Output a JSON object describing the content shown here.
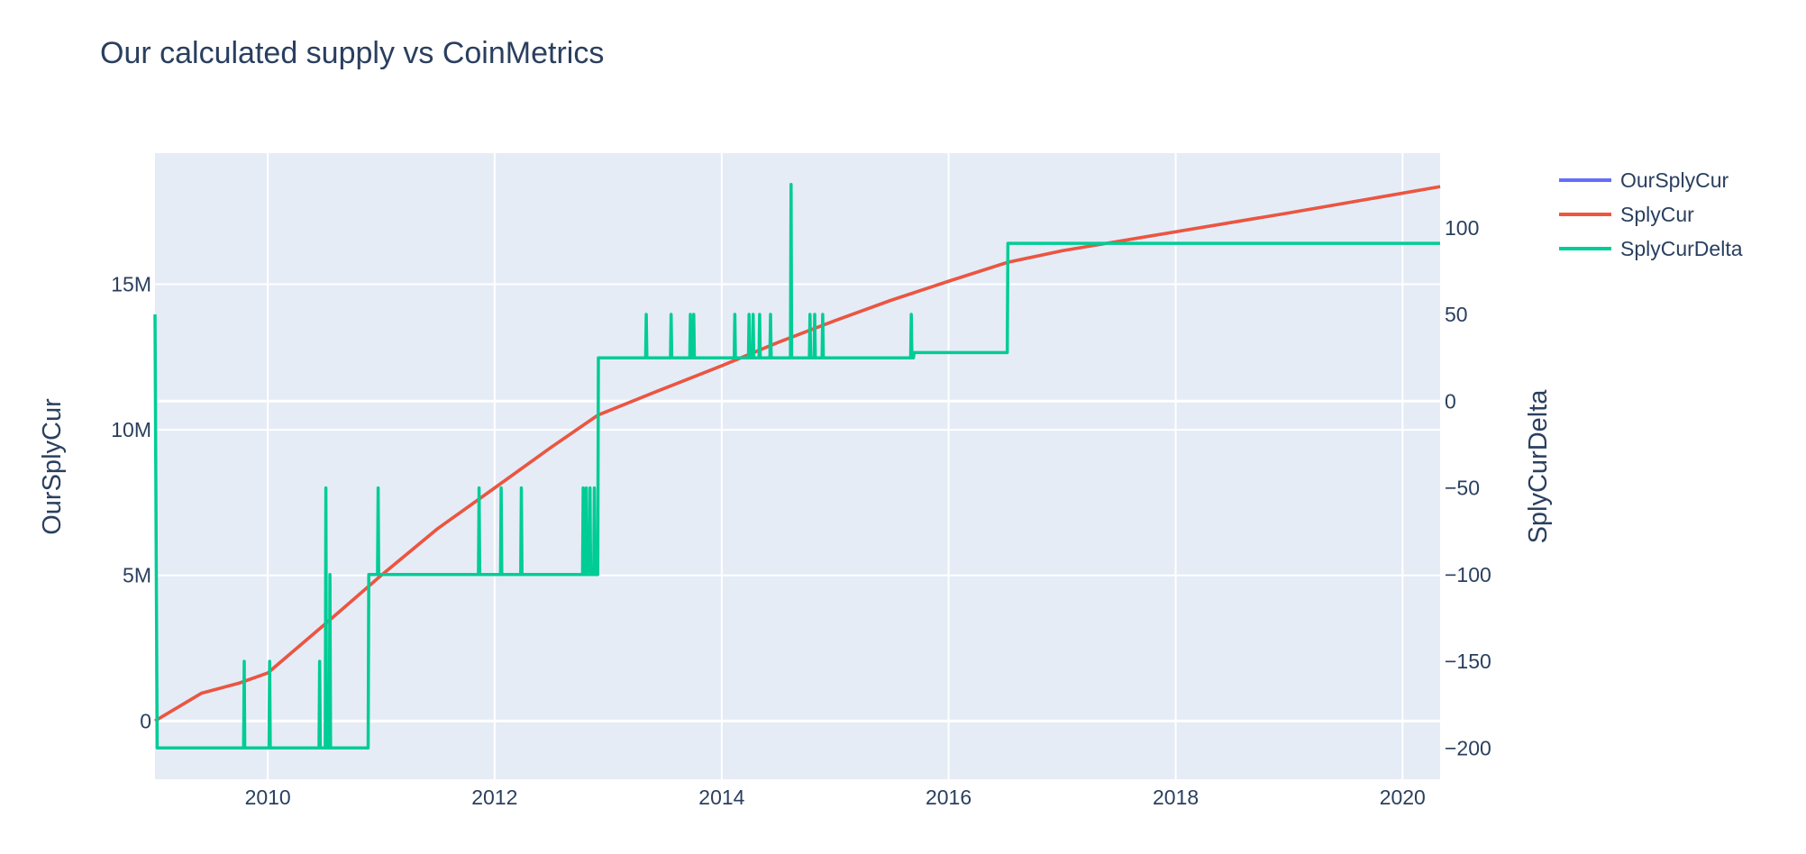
{
  "chart_data": {
    "type": "line",
    "title": "Our calculated supply vs CoinMetrics",
    "x_axis": {
      "type": "date",
      "range": [
        "2009-01-03",
        "2020-05-01"
      ],
      "ticks": [
        "2010",
        "2012",
        "2014",
        "2016",
        "2018",
        "2020"
      ],
      "grid": true
    },
    "y_axis_left": {
      "label": "OurSplyCur",
      "range": [
        -2000000,
        19500000
      ],
      "ticks": [
        0,
        5000000,
        10000000,
        15000000
      ],
      "tick_labels": [
        "0",
        "5M",
        "10M",
        "15M"
      ],
      "grid": true
    },
    "y_axis_right": {
      "label": "SplyCurDelta",
      "range": [
        -218,
        143
      ],
      "ticks": [
        100,
        50,
        0,
        -50,
        -100,
        -150,
        -200
      ],
      "tick_labels": [
        "100",
        "50",
        "0",
        "−50",
        "−100",
        "−150",
        "−200"
      ]
    },
    "legend": {
      "placement": "top-right-outside"
    },
    "plot_background": "#e5ecf6",
    "series": [
      {
        "name": "OurSplyCur",
        "axis": "left",
        "color": "#636efa",
        "points": [
          [
            "2009-01-03",
            0
          ],
          [
            "2009-06-01",
            950000
          ],
          [
            "2009-10-01",
            1300000
          ],
          [
            "2010-01-01",
            1650000
          ],
          [
            "2010-07-01",
            3300000
          ],
          [
            "2011-01-01",
            5000000
          ],
          [
            "2011-07-01",
            6600000
          ],
          [
            "2012-01-01",
            8000000
          ],
          [
            "2012-07-01",
            9400000
          ],
          [
            "2012-11-28",
            10500000
          ],
          [
            "2013-06-01",
            11300000
          ],
          [
            "2014-01-01",
            12200000
          ],
          [
            "2014-07-01",
            13000000
          ],
          [
            "2015-01-01",
            13750000
          ],
          [
            "2015-07-01",
            14450000
          ],
          [
            "2016-01-01",
            15100000
          ],
          [
            "2016-07-09",
            15750000
          ],
          [
            "2017-01-01",
            16150000
          ],
          [
            "2018-01-01",
            16800000
          ],
          [
            "2019-01-01",
            17450000
          ],
          [
            "2020-05-01",
            18350000
          ]
        ]
      },
      {
        "name": "SplyCur",
        "axis": "left",
        "color": "#ef553b",
        "points": [
          [
            "2009-01-03",
            0
          ],
          [
            "2009-06-01",
            950000
          ],
          [
            "2009-10-01",
            1300000
          ],
          [
            "2010-01-01",
            1650000
          ],
          [
            "2010-07-01",
            3300000
          ],
          [
            "2011-01-01",
            5000000
          ],
          [
            "2011-07-01",
            6600000
          ],
          [
            "2012-01-01",
            8000000
          ],
          [
            "2012-07-01",
            9400000
          ],
          [
            "2012-11-28",
            10500000
          ],
          [
            "2013-06-01",
            11300000
          ],
          [
            "2014-01-01",
            12200000
          ],
          [
            "2014-07-01",
            13000000
          ],
          [
            "2015-01-01",
            13750000
          ],
          [
            "2015-07-01",
            14450000
          ],
          [
            "2016-01-01",
            15100000
          ],
          [
            "2016-07-09",
            15750000
          ],
          [
            "2017-01-01",
            16150000
          ],
          [
            "2018-01-01",
            16800000
          ],
          [
            "2019-01-01",
            17450000
          ],
          [
            "2020-05-01",
            18350000
          ]
        ]
      },
      {
        "name": "SplyCurDelta",
        "axis": "right",
        "color": "#00cc96",
        "points": [
          [
            "2009-01-03",
            50
          ],
          [
            "2009-01-10",
            -200
          ],
          [
            "2009-10-15",
            -200
          ],
          [
            "2009-10-17",
            -150
          ],
          [
            "2009-10-19",
            -200
          ],
          [
            "2010-01-05",
            -200
          ],
          [
            "2010-01-07",
            -150
          ],
          [
            "2010-01-09",
            -200
          ],
          [
            "2010-06-15",
            -200
          ],
          [
            "2010-06-17",
            -150
          ],
          [
            "2010-06-19",
            -200
          ],
          [
            "2010-07-05",
            -200
          ],
          [
            "2010-07-07",
            -50
          ],
          [
            "2010-07-09",
            -200
          ],
          [
            "2010-07-18",
            -200
          ],
          [
            "2010-07-20",
            -100
          ],
          [
            "2010-07-22",
            -200
          ],
          [
            "2010-11-20",
            -200
          ],
          [
            "2010-11-22",
            -100
          ],
          [
            "2010-12-20",
            -100
          ],
          [
            "2010-12-22",
            -50
          ],
          [
            "2010-12-24",
            -100
          ],
          [
            "2011-11-10",
            -100
          ],
          [
            "2011-11-12",
            -50
          ],
          [
            "2011-11-14",
            -100
          ],
          [
            "2012-01-20",
            -100
          ],
          [
            "2012-01-22",
            -50
          ],
          [
            "2012-01-24",
            -100
          ],
          [
            "2012-03-25",
            -100
          ],
          [
            "2012-03-27",
            -50
          ],
          [
            "2012-03-29",
            -100
          ],
          [
            "2012-10-10",
            -100
          ],
          [
            "2012-10-12",
            -50
          ],
          [
            "2012-10-14",
            -100
          ],
          [
            "2012-10-20",
            -100
          ],
          [
            "2012-10-22",
            -50
          ],
          [
            "2012-10-24",
            -100
          ],
          [
            "2012-11-01",
            -100
          ],
          [
            "2012-11-03",
            -50
          ],
          [
            "2012-11-05",
            -100
          ],
          [
            "2012-11-15",
            -100
          ],
          [
            "2012-11-17",
            -50
          ],
          [
            "2012-11-19",
            -100
          ],
          [
            "2012-11-28",
            -100
          ],
          [
            "2012-11-30",
            25
          ],
          [
            "2013-05-01",
            25
          ],
          [
            "2013-05-03",
            50
          ],
          [
            "2013-05-05",
            25
          ],
          [
            "2013-07-20",
            25
          ],
          [
            "2013-07-22",
            50
          ],
          [
            "2013-07-24",
            25
          ],
          [
            "2013-09-20",
            25
          ],
          [
            "2013-09-22",
            50
          ],
          [
            "2013-09-24",
            25
          ],
          [
            "2013-10-01",
            25
          ],
          [
            "2013-10-03",
            50
          ],
          [
            "2013-10-05",
            25
          ],
          [
            "2014-02-10",
            25
          ],
          [
            "2014-02-12",
            50
          ],
          [
            "2014-02-14",
            25
          ],
          [
            "2014-03-28",
            25
          ],
          [
            "2014-03-30",
            50
          ],
          [
            "2014-04-01",
            25
          ],
          [
            "2014-04-10",
            25
          ],
          [
            "2014-04-12",
            50
          ],
          [
            "2014-04-14",
            25
          ],
          [
            "2014-05-01",
            25
          ],
          [
            "2014-05-03",
            50
          ],
          [
            "2014-05-05",
            25
          ],
          [
            "2014-06-05",
            25
          ],
          [
            "2014-06-07",
            50
          ],
          [
            "2014-06-09",
            25
          ],
          [
            "2014-08-10",
            25
          ],
          [
            "2014-08-12",
            125
          ],
          [
            "2014-08-14",
            25
          ],
          [
            "2014-10-10",
            25
          ],
          [
            "2014-10-12",
            50
          ],
          [
            "2014-10-14",
            25
          ],
          [
            "2014-10-25",
            25
          ],
          [
            "2014-10-27",
            50
          ],
          [
            "2014-10-29",
            25
          ],
          [
            "2014-11-20",
            25
          ],
          [
            "2014-11-22",
            50
          ],
          [
            "2014-11-24",
            25
          ],
          [
            "2015-09-01",
            25
          ],
          [
            "2015-09-03",
            50
          ],
          [
            "2015-09-05",
            25
          ],
          [
            "2015-09-10",
            25
          ],
          [
            "2015-09-12",
            28
          ],
          [
            "2016-07-08",
            28
          ],
          [
            "2016-07-10",
            91
          ],
          [
            "2020-05-01",
            91
          ]
        ]
      }
    ]
  }
}
